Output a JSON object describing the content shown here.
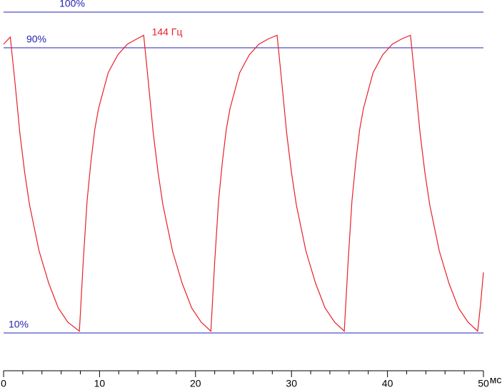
{
  "chart_data": {
    "type": "line",
    "x": [
      0,
      0.7,
      1.2,
      1.7,
      2.2,
      2.7,
      3.7,
      4.7,
      5.7,
      6.7,
      7.9,
      8.3,
      8.7,
      9.1,
      9.5,
      9.9,
      10.9,
      11.9,
      12.9,
      13.9,
      14.6,
      15.1,
      15.6,
      16.1,
      16.6,
      17.6,
      18.6,
      19.6,
      20.6,
      21.6,
      22.0,
      22.4,
      22.8,
      23.2,
      23.6,
      24.6,
      25.6,
      26.6,
      27.6,
      28.5,
      29.0,
      29.5,
      30.0,
      30.5,
      31.5,
      32.5,
      33.5,
      34.5,
      35.5,
      35.9,
      36.3,
      36.7,
      37.1,
      37.5,
      38.5,
      39.5,
      40.5,
      41.5,
      42.4,
      42.9,
      43.4,
      43.9,
      44.4,
      45.4,
      46.4,
      47.4,
      48.4,
      49.4,
      49.7,
      50
    ],
    "series": [
      {
        "name": "144 Гц",
        "color": "#e8202a",
        "values": [
          91,
          93,
          80,
          66,
          55,
          46,
          33,
          24,
          17,
          13,
          10.5,
          30,
          47,
          58,
          67,
          73,
          83,
          88,
          91,
          92.5,
          93.5,
          80,
          66,
          55,
          46,
          33,
          24,
          17,
          13,
          10.5,
          30,
          47,
          58,
          67,
          73,
          83,
          88,
          91,
          92.5,
          93.5,
          80,
          66,
          55,
          46,
          33,
          24,
          17,
          13,
          10.5,
          30,
          47,
          58,
          67,
          73,
          83,
          88,
          91,
          92.5,
          93.5,
          80,
          66,
          55,
          46,
          33,
          24,
          17,
          13,
          10.5,
          18,
          27
        ]
      }
    ],
    "xlim": [
      0,
      50
    ],
    "xticks": [
      0,
      10,
      20,
      30,
      40,
      50
    ],
    "xminorticks": [
      2,
      4,
      6,
      8,
      12,
      14,
      16,
      18,
      22,
      24,
      26,
      28,
      32,
      34,
      36,
      38,
      42,
      44,
      46,
      48
    ],
    "xlabel": "мс",
    "ylim": [
      0,
      100
    ],
    "yticks": [
      {
        "value": 10,
        "label": "10%"
      },
      {
        "value": 90,
        "label": "90%"
      },
      {
        "value": 100,
        "label": "100%"
      }
    ],
    "grid": true,
    "grid_color": "#2323b4"
  }
}
